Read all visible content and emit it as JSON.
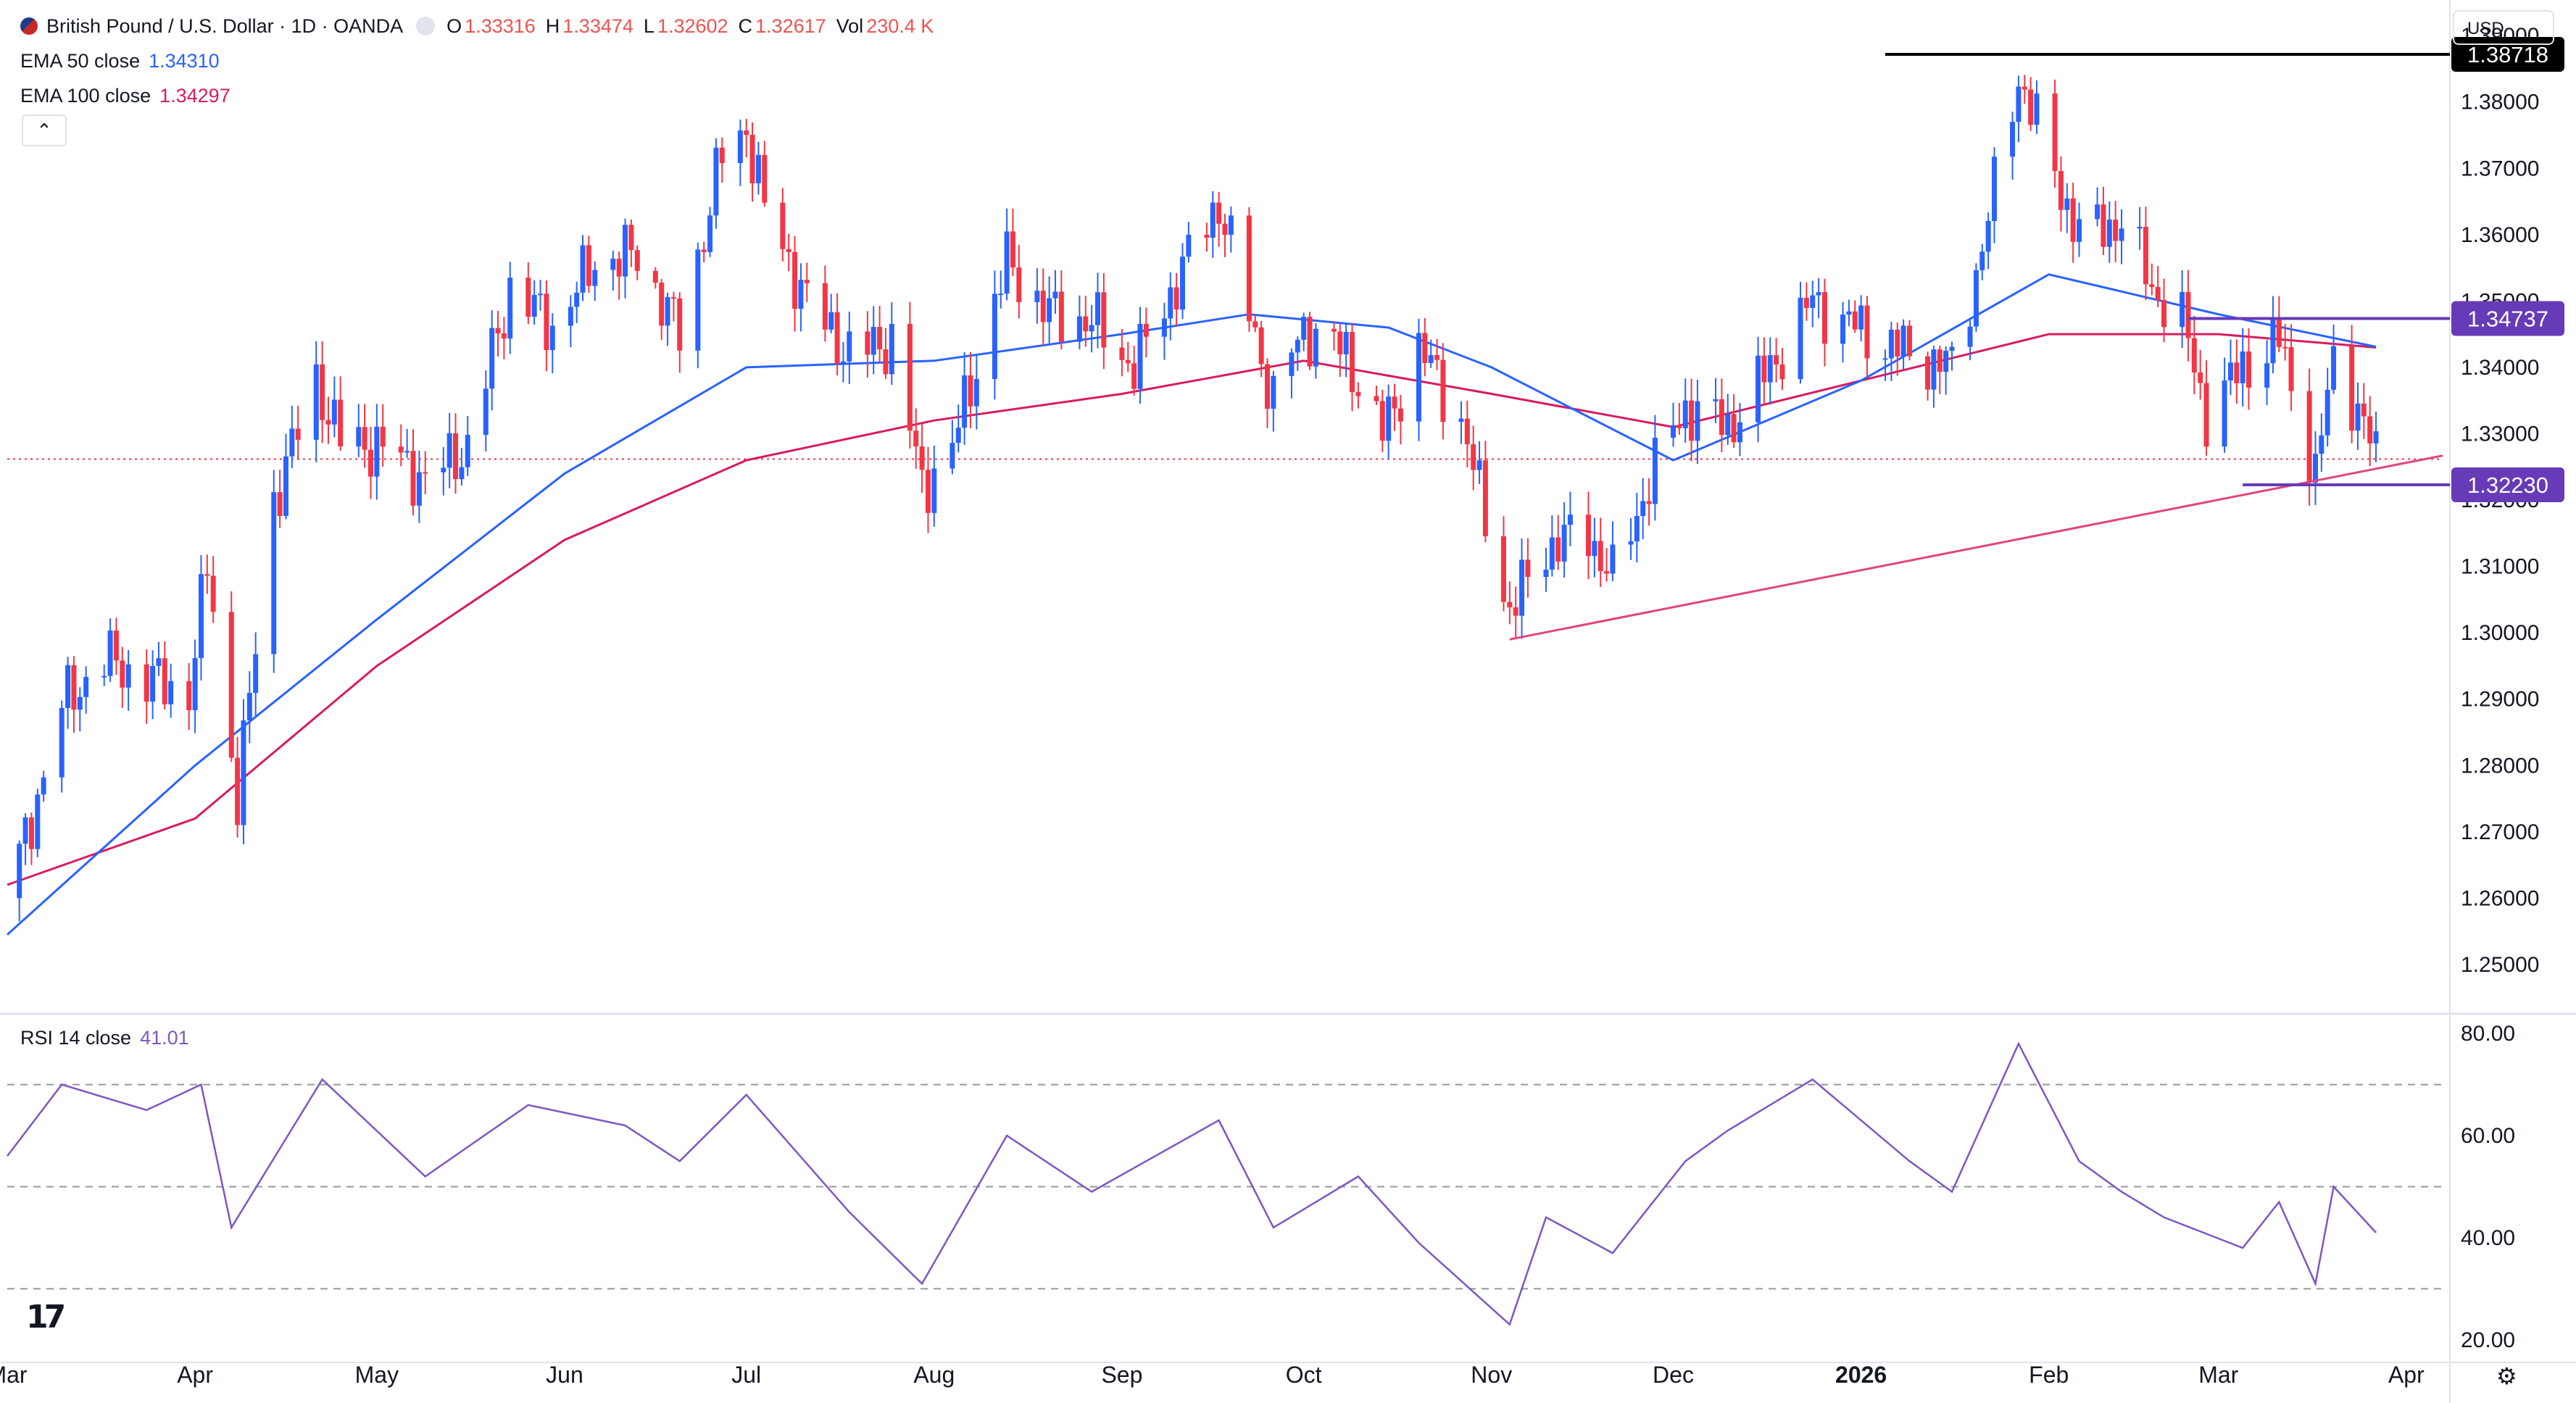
{
  "header": {
    "title": "British Pound / U.S. Dollar · 1D · OANDA",
    "ohlc": [
      {
        "label": "O",
        "value": "1.33316"
      },
      {
        "label": "H",
        "value": "1.33474"
      },
      {
        "label": "L",
        "value": "1.32602"
      },
      {
        "label": "C",
        "value": "1.32617"
      },
      {
        "label": "Vol",
        "value": "230.4 K"
      }
    ],
    "ema50_label": "EMA 50 close",
    "ema50_value": "1.34310",
    "ema100_label": "EMA 100 close",
    "ema100_value": "1.34297",
    "collapse_glyph": "⌃",
    "currency": "USD"
  },
  "rsi_panel": {
    "label": "RSI 14 close",
    "value": "41.01"
  },
  "colors": {
    "up": "#2962ff",
    "down": "#f23645",
    "ema50": "#2962ff",
    "ema100": "#d81b60",
    "rsi": "#7e57c2",
    "support_line": "#e0457b",
    "horizontal_level": "#673ab7",
    "high_level": "#000000"
  },
  "icons": {
    "logo": "tradingview-logo-icon",
    "settings": "gear-icon"
  },
  "chart_data": {
    "type": "candlestick",
    "x_start": "2025-03-01",
    "x_end": "2026-04-07",
    "ylim": [
      1.243,
      1.391
    ],
    "rsi_ylim": [
      17,
      83
    ],
    "price_ticks": [
      "1.25000",
      "1.26000",
      "1.27000",
      "1.28000",
      "1.29000",
      "1.30000",
      "1.31000",
      "1.32000",
      "1.33000",
      "1.34000",
      "1.35000",
      "1.36000",
      "1.37000",
      "1.38000",
      "1.39000"
    ],
    "rsi_ticks": [
      "20.00",
      "40.00",
      "60.00",
      "80.00"
    ],
    "rsi_levels": [
      70,
      50,
      30
    ],
    "month_labels": [
      {
        "text": "Mar",
        "date": "2025-03-01"
      },
      {
        "text": "Apr",
        "date": "2025-04-01"
      },
      {
        "text": "May",
        "date": "2025-05-01"
      },
      {
        "text": "Jun",
        "date": "2025-06-01"
      },
      {
        "text": "Jul",
        "date": "2025-07-01"
      },
      {
        "text": "Aug",
        "date": "2025-08-01"
      },
      {
        "text": "Sep",
        "date": "2025-09-01"
      },
      {
        "text": "Oct",
        "date": "2025-10-01"
      },
      {
        "text": "Nov",
        "date": "2025-11-01"
      },
      {
        "text": "Dec",
        "date": "2025-12-01"
      },
      {
        "text": "2026",
        "date": "2026-01-01",
        "bold": true
      },
      {
        "text": "Feb",
        "date": "2026-02-01"
      },
      {
        "text": "Mar",
        "date": "2026-03-01"
      },
      {
        "text": "Apr",
        "date": "2026-04-01"
      }
    ],
    "close_path": [
      {
        "date": "2025-03-01",
        "close": 1.26
      },
      {
        "date": "2025-03-05",
        "close": 1.272
      },
      {
        "date": "2025-03-10",
        "close": 1.289
      },
      {
        "date": "2025-03-17",
        "close": 1.296
      },
      {
        "date": "2025-03-24",
        "close": 1.293
      },
      {
        "date": "2025-03-31",
        "close": 1.291
      },
      {
        "date": "2025-04-03",
        "close": 1.31
      },
      {
        "date": "2025-04-08",
        "close": 1.275
      },
      {
        "date": "2025-04-14",
        "close": 1.32
      },
      {
        "date": "2025-04-21",
        "close": 1.338
      },
      {
        "date": "2025-04-25",
        "close": 1.329
      },
      {
        "date": "2025-05-02",
        "close": 1.328
      },
      {
        "date": "2025-05-09",
        "close": 1.323
      },
      {
        "date": "2025-05-16",
        "close": 1.328
      },
      {
        "date": "2025-05-23",
        "close": 1.352
      },
      {
        "date": "2025-05-30",
        "close": 1.346
      },
      {
        "date": "2025-06-06",
        "close": 1.356
      },
      {
        "date": "2025-06-13",
        "close": 1.357
      },
      {
        "date": "2025-06-20",
        "close": 1.345
      },
      {
        "date": "2025-06-27",
        "close": 1.372
      },
      {
        "date": "2025-07-01",
        "close": 1.376
      },
      {
        "date": "2025-07-04",
        "close": 1.364
      },
      {
        "date": "2025-07-11",
        "close": 1.35
      },
      {
        "date": "2025-07-18",
        "close": 1.342
      },
      {
        "date": "2025-07-25",
        "close": 1.344
      },
      {
        "date": "2025-07-30",
        "close": 1.322
      },
      {
        "date": "2025-08-04",
        "close": 1.328
      },
      {
        "date": "2025-08-13",
        "close": 1.356
      },
      {
        "date": "2025-08-20",
        "close": 1.348
      },
      {
        "date": "2025-08-27",
        "close": 1.347
      },
      {
        "date": "2025-09-03",
        "close": 1.34
      },
      {
        "date": "2025-09-10",
        "close": 1.353
      },
      {
        "date": "2025-09-17",
        "close": 1.365
      },
      {
        "date": "2025-09-22",
        "close": 1.348
      },
      {
        "date": "2025-09-26",
        "close": 1.335
      },
      {
        "date": "2025-10-01",
        "close": 1.346
      },
      {
        "date": "2025-10-08",
        "close": 1.342
      },
      {
        "date": "2025-10-14",
        "close": 1.33
      },
      {
        "date": "2025-10-20",
        "close": 1.343
      },
      {
        "date": "2025-10-27",
        "close": 1.332
      },
      {
        "date": "2025-11-04",
        "close": 1.303
      },
      {
        "date": "2025-11-10",
        "close": 1.313
      },
      {
        "date": "2025-11-17",
        "close": 1.315
      },
      {
        "date": "2025-11-21",
        "close": 1.308
      },
      {
        "date": "2025-11-27",
        "close": 1.323
      },
      {
        "date": "2025-12-03",
        "close": 1.334
      },
      {
        "date": "2025-12-10",
        "close": 1.331
      },
      {
        "date": "2025-12-17",
        "close": 1.34
      },
      {
        "date": "2025-12-24",
        "close": 1.35
      },
      {
        "date": "2026-01-02",
        "close": 1.345
      },
      {
        "date": "2026-01-09",
        "close": 1.342
      },
      {
        "date": "2026-01-16",
        "close": 1.34
      },
      {
        "date": "2026-01-21",
        "close": 1.358
      },
      {
        "date": "2026-01-27",
        "close": 1.384
      },
      {
        "date": "2026-02-02",
        "close": 1.369
      },
      {
        "date": "2026-02-06",
        "close": 1.36
      },
      {
        "date": "2026-02-13",
        "close": 1.362
      },
      {
        "date": "2026-02-18",
        "close": 1.352
      },
      {
        "date": "2026-02-23",
        "close": 1.347
      },
      {
        "date": "2026-02-27",
        "close": 1.333
      },
      {
        "date": "2026-03-05",
        "close": 1.34
      },
      {
        "date": "2026-03-11",
        "close": 1.344
      },
      {
        "date": "2026-03-17",
        "close": 1.324
      },
      {
        "date": "2026-03-20",
        "close": 1.341
      },
      {
        "date": "2026-03-24",
        "close": 1.334
      },
      {
        "date": "2026-03-27",
        "close": 1.3262
      }
    ],
    "ema50_path": [
      {
        "date": "2025-03-01",
        "value": 1.2545
      },
      {
        "date": "2025-04-01",
        "value": 1.28
      },
      {
        "date": "2025-05-01",
        "value": 1.302
      },
      {
        "date": "2025-06-01",
        "value": 1.324
      },
      {
        "date": "2025-07-01",
        "value": 1.34
      },
      {
        "date": "2025-08-01",
        "value": 1.341
      },
      {
        "date": "2025-09-01",
        "value": 1.345
      },
      {
        "date": "2025-09-22",
        "value": 1.348
      },
      {
        "date": "2025-10-15",
        "value": 1.346
      },
      {
        "date": "2025-11-01",
        "value": 1.34
      },
      {
        "date": "2025-12-01",
        "value": 1.326
      },
      {
        "date": "2026-01-01",
        "value": 1.338
      },
      {
        "date": "2026-02-01",
        "value": 1.354
      },
      {
        "date": "2026-03-01",
        "value": 1.348
      },
      {
        "date": "2026-03-27",
        "value": 1.3431
      }
    ],
    "ema100_path": [
      {
        "date": "2025-03-01",
        "value": 1.262
      },
      {
        "date": "2025-04-01",
        "value": 1.272
      },
      {
        "date": "2025-05-01",
        "value": 1.295
      },
      {
        "date": "2025-06-01",
        "value": 1.314
      },
      {
        "date": "2025-07-01",
        "value": 1.326
      },
      {
        "date": "2025-08-01",
        "value": 1.332
      },
      {
        "date": "2025-09-01",
        "value": 1.336
      },
      {
        "date": "2025-10-01",
        "value": 1.341
      },
      {
        "date": "2025-11-01",
        "value": 1.336
      },
      {
        "date": "2025-12-01",
        "value": 1.331
      },
      {
        "date": "2026-01-01",
        "value": 1.338
      },
      {
        "date": "2026-02-01",
        "value": 1.345
      },
      {
        "date": "2026-03-01",
        "value": 1.345
      },
      {
        "date": "2026-03-27",
        "value": 1.343
      }
    ],
    "rsi_path": [
      {
        "date": "2025-03-01",
        "value": 56
      },
      {
        "date": "2025-03-10",
        "value": 70
      },
      {
        "date": "2025-03-24",
        "value": 65
      },
      {
        "date": "2025-04-02",
        "value": 70
      },
      {
        "date": "2025-04-07",
        "value": 42
      },
      {
        "date": "2025-04-22",
        "value": 71
      },
      {
        "date": "2025-05-09",
        "value": 52
      },
      {
        "date": "2025-05-26",
        "value": 66
      },
      {
        "date": "2025-06-11",
        "value": 62
      },
      {
        "date": "2025-06-20",
        "value": 55
      },
      {
        "date": "2025-07-01",
        "value": 68
      },
      {
        "date": "2025-07-18",
        "value": 45
      },
      {
        "date": "2025-07-30",
        "value": 31
      },
      {
        "date": "2025-08-13",
        "value": 60
      },
      {
        "date": "2025-08-27",
        "value": 49
      },
      {
        "date": "2025-09-17",
        "value": 63
      },
      {
        "date": "2025-09-26",
        "value": 42
      },
      {
        "date": "2025-10-10",
        "value": 52
      },
      {
        "date": "2025-10-20",
        "value": 39
      },
      {
        "date": "2025-11-04",
        "value": 23
      },
      {
        "date": "2025-11-10",
        "value": 44
      },
      {
        "date": "2025-11-21",
        "value": 37
      },
      {
        "date": "2025-12-03",
        "value": 55
      },
      {
        "date": "2025-12-10",
        "value": 61
      },
      {
        "date": "2025-12-24",
        "value": 71
      },
      {
        "date": "2026-01-09",
        "value": 55
      },
      {
        "date": "2026-01-16",
        "value": 49
      },
      {
        "date": "2026-01-27",
        "value": 78
      },
      {
        "date": "2026-02-06",
        "value": 55
      },
      {
        "date": "2026-02-13",
        "value": 49
      },
      {
        "date": "2026-02-20",
        "value": 44
      },
      {
        "date": "2026-03-05",
        "value": 38
      },
      {
        "date": "2026-03-11",
        "value": 47
      },
      {
        "date": "2026-03-17",
        "value": 31
      },
      {
        "date": "2026-03-20",
        "value": 50
      },
      {
        "date": "2026-03-27",
        "value": 41
      }
    ],
    "price_labels": [
      {
        "text": "1.38718",
        "value": 1.38718,
        "style": "dark"
      },
      {
        "text": "1.34737",
        "value": 1.34737,
        "style": "purple"
      },
      {
        "text": "1.32230",
        "value": 1.3223,
        "style": "purple"
      }
    ],
    "horizontal_segments": [
      {
        "value": 1.38718,
        "from": "2026-01-05",
        "to": "2026-04-10",
        "color": "#000000"
      },
      {
        "value": 1.34737,
        "from": "2026-02-24",
        "to": "2026-04-10",
        "color": "#673ab7"
      },
      {
        "value": 1.3223,
        "from": "2026-03-05",
        "to": "2026-04-10",
        "color": "#673ab7"
      }
    ],
    "trendline": {
      "from": {
        "date": "2025-11-04",
        "value": 1.299
      },
      "to": {
        "date": "2026-04-07",
        "value": 1.3267
      }
    },
    "last_price_line": 1.32617
  }
}
